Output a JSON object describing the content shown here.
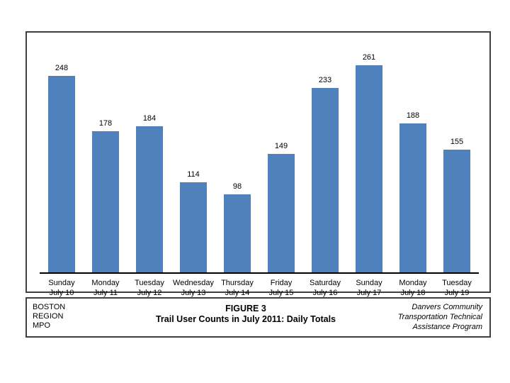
{
  "chart_data": {
    "type": "bar",
    "figure_label": "FIGURE 3",
    "title": "Trail User Counts in July 2011: Daily Totals",
    "categories": [
      {
        "day": "Sunday",
        "date": "July 10"
      },
      {
        "day": "Monday",
        "date": "July 11"
      },
      {
        "day": "Tuesday",
        "date": "July 12"
      },
      {
        "day": "Wednesday",
        "date": "July 13"
      },
      {
        "day": "Thursday",
        "date": "July 14"
      },
      {
        "day": "Friday",
        "date": "July 15"
      },
      {
        "day": "Saturday",
        "date": "July 16"
      },
      {
        "day": "Sunday",
        "date": "July 17"
      },
      {
        "day": "Monday",
        "date": "July 18"
      },
      {
        "day": "Tuesday",
        "date": "July 19"
      }
    ],
    "values": [
      248,
      178,
      184,
      114,
      98,
      149,
      233,
      261,
      188,
      155
    ],
    "xlabel": "",
    "ylabel": "",
    "ylim": [
      0,
      280
    ],
    "grid": false,
    "data_labels": true,
    "legend_position": "none",
    "y_axis_visible": false,
    "bar_color": "#4F81BD"
  },
  "footer": {
    "left_lines": [
      "BOSTON",
      "REGION",
      "MPO"
    ],
    "right_lines": [
      "Danvers Community",
      "Transportation Technical",
      "Assistance Program"
    ]
  },
  "colors": {
    "bar": "#4F81BD",
    "frame_border": "#3f3f3f",
    "axis_line": "#000000",
    "text": "#000000"
  }
}
